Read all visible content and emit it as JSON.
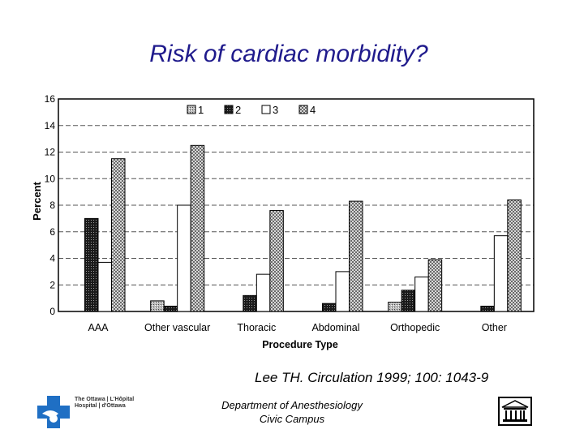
{
  "slide": {
    "title": "Risk of cardiac morbidity?",
    "citation": "Lee TH. Circulation 1999; 100: 1043-9",
    "footer_line1": "Department of Anesthesiology",
    "footer_line2": "Civic Campus",
    "logo_text_line1": "The Ottawa | L'Hôpital",
    "logo_text_line2": "Hospital | d'Ottawa",
    "logo_left_icon": "hospital-cross-logo-icon",
    "logo_right_icon": "university-building-icon"
  },
  "chart_data": {
    "type": "bar",
    "title": "",
    "xlabel": "Procedure Type",
    "ylabel": "Percent",
    "ylim": [
      0,
      16
    ],
    "yticks": [
      "0",
      "2",
      "4",
      "6",
      "8",
      "10",
      "12",
      "14",
      "16"
    ],
    "grid": true,
    "legend_position": "top-center",
    "categories": [
      "AAA",
      "Other vascular",
      "Thoracic",
      "Abdominal",
      "Orthopedic",
      "Other"
    ],
    "series": [
      {
        "name": "1",
        "values": [
          0,
          0.8,
          0,
          0,
          0.7,
          0
        ],
        "pattern": "light-stipple"
      },
      {
        "name": "2",
        "values": [
          7.0,
          0.4,
          1.2,
          0.6,
          1.6,
          0.4
        ],
        "pattern": "dark-stipple"
      },
      {
        "name": "3",
        "values": [
          3.7,
          8.0,
          2.8,
          3.0,
          2.6,
          5.7
        ],
        "pattern": "white"
      },
      {
        "name": "4",
        "values": [
          11.5,
          12.5,
          7.6,
          8.3,
          3.9,
          8.4
        ],
        "pattern": "checker"
      }
    ]
  }
}
